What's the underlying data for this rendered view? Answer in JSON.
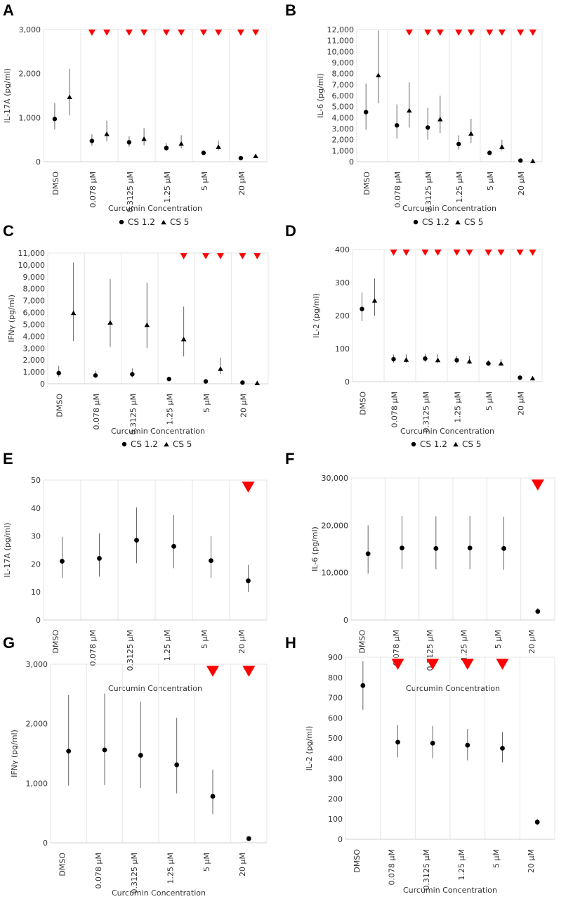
{
  "colors": {
    "marker": "#000000",
    "flag": "#ff0000",
    "grid": "#e6e6e6",
    "axis": "#d0d0d0"
  },
  "chart_data": [
    {
      "panel": "A",
      "type": "scatter",
      "ylabel": "IL-17A (pg/ml)",
      "xlabel": "Curcumin Concentration",
      "ylim": [
        0,
        3000
      ],
      "yticks": [
        0,
        1000,
        2000,
        3000
      ],
      "ytick_labels": [
        "0",
        "1,000",
        "2,000",
        "3,000"
      ],
      "categories": [
        "DMSO",
        "0.078 µM",
        "0.3125 µM",
        "1.25 µM",
        "5 µM",
        "20 µM"
      ],
      "series": [
        {
          "name": "CS 1.2",
          "marker": "circle",
          "values": [
            970,
            470,
            440,
            310,
            200,
            80
          ],
          "low": [
            730,
            360,
            340,
            240,
            160,
            60
          ],
          "high": [
            1330,
            620,
            580,
            420,
            250,
            100
          ],
          "flags": [
            false,
            true,
            true,
            true,
            true,
            true
          ]
        },
        {
          "name": "CS 5",
          "marker": "triangle",
          "values": [
            1480,
            640,
            530,
            420,
            350,
            140
          ],
          "low": [
            1050,
            460,
            370,
            300,
            250,
            110
          ],
          "high": [
            2110,
            930,
            760,
            600,
            480,
            170
          ],
          "flags": [
            false,
            true,
            true,
            true,
            true,
            true
          ]
        }
      ],
      "legend": [
        "CS 1.2",
        "CS 5"
      ]
    },
    {
      "panel": "B",
      "type": "scatter",
      "ylabel": "IL-6 (pg/ml)",
      "xlabel": "Curcumin Concentration",
      "ylim": [
        0,
        12000
      ],
      "yticks": [
        0,
        1000,
        2000,
        3000,
        4000,
        5000,
        6000,
        7000,
        8000,
        9000,
        10000,
        11000,
        12000
      ],
      "ytick_labels": [
        "0",
        "1,000",
        "2,000",
        "3,000",
        "4,000",
        "5,000",
        "6,000",
        "7,000",
        "8,000",
        "9,000",
        "10,000",
        "11,000",
        "12,000"
      ],
      "categories": [
        "DMSO",
        "0.078 µM",
        "0.3125 µM",
        "1.25 µM",
        "5 µM",
        "20 µM"
      ],
      "series": [
        {
          "name": "CS 1.2",
          "marker": "circle",
          "values": [
            4500,
            3300,
            3100,
            1600,
            800,
            100
          ],
          "low": [
            2900,
            2100,
            2000,
            1100,
            600,
            80
          ],
          "high": [
            7100,
            5200,
            4900,
            2400,
            1050,
            120
          ],
          "flags": [
            false,
            false,
            true,
            true,
            true,
            true
          ]
        },
        {
          "name": "CS 5",
          "marker": "triangle",
          "values": [
            7900,
            4700,
            3900,
            2600,
            1400,
            100
          ],
          "low": [
            5300,
            3100,
            2600,
            1700,
            1000,
            80
          ],
          "high": [
            11900,
            7200,
            6000,
            3900,
            2000,
            120
          ],
          "flags": [
            false,
            true,
            true,
            true,
            true,
            true
          ]
        }
      ],
      "legend": [
        "CS 1.2",
        "CS 5"
      ]
    },
    {
      "panel": "C",
      "type": "scatter",
      "ylabel": "IFNγ (pg/ml)",
      "xlabel": "Curcumin Concentration",
      "ylim": [
        0,
        11000
      ],
      "yticks": [
        0,
        1000,
        2000,
        3000,
        4000,
        5000,
        6000,
        7000,
        8000,
        9000,
        10000,
        11000
      ],
      "ytick_labels": [
        "0",
        "1,000",
        "2,000",
        "3,000",
        "4,000",
        "5,000",
        "6,000",
        "7,000",
        "8,000",
        "9,000",
        "10,000",
        "11,000"
      ],
      "categories": [
        "DMSO",
        "0.078 µM",
        "0.3125 µM",
        "1.25 µM",
        "5 µM",
        "20 µM"
      ],
      "series": [
        {
          "name": "CS 1.2",
          "marker": "circle",
          "values": [
            900,
            700,
            800,
            400,
            200,
            100
          ],
          "low": [
            600,
            500,
            550,
            300,
            150,
            80
          ],
          "high": [
            1500,
            1100,
            1300,
            550,
            260,
            130
          ],
          "flags": [
            false,
            false,
            false,
            false,
            true,
            true
          ]
        },
        {
          "name": "CS 5",
          "marker": "triangle",
          "values": [
            6000,
            5200,
            5000,
            3800,
            1300,
            100
          ],
          "low": [
            3600,
            3100,
            3000,
            2300,
            800,
            80
          ],
          "high": [
            10200,
            8800,
            8500,
            6500,
            2200,
            130
          ],
          "flags": [
            false,
            false,
            false,
            true,
            true,
            true
          ]
        }
      ],
      "legend": [
        "CS 1.2",
        "CS 5"
      ]
    },
    {
      "panel": "D",
      "type": "scatter",
      "ylabel": "IL-2 (pg/ml)",
      "xlabel": "Curcumin Concentration",
      "ylim": [
        0,
        400
      ],
      "yticks": [
        0,
        100,
        200,
        300,
        400
      ],
      "ytick_labels": [
        "0",
        "100",
        "200",
        "300",
        "400"
      ],
      "categories": [
        "DMSO",
        "0.078 µM",
        "0.3125 µM",
        "1.25 µM",
        "5 µM",
        "20 µM"
      ],
      "series": [
        {
          "name": "CS 1.2",
          "marker": "circle",
          "values": [
            220,
            68,
            70,
            65,
            55,
            12
          ],
          "low": [
            183,
            58,
            60,
            56,
            48,
            10
          ],
          "high": [
            270,
            82,
            84,
            78,
            65,
            15
          ],
          "flags": [
            false,
            true,
            true,
            true,
            true,
            true
          ]
        },
        {
          "name": "CS 5",
          "marker": "triangle",
          "values": [
            247,
            68,
            67,
            63,
            57,
            12
          ],
          "low": [
            200,
            57,
            56,
            53,
            48,
            10
          ],
          "high": [
            312,
            83,
            83,
            78,
            68,
            15
          ],
          "flags": [
            false,
            true,
            true,
            true,
            true,
            true
          ]
        }
      ],
      "legend": [
        "CS 1.2",
        "CS 5"
      ]
    },
    {
      "panel": "E",
      "type": "scatter",
      "ylabel": "IL-17A (pg/ml)",
      "xlabel": "Curcumin Concentration",
      "ylim": [
        0,
        50
      ],
      "yticks": [
        0,
        10,
        20,
        30,
        40,
        50
      ],
      "ytick_labels": [
        "0",
        "10",
        "20",
        "30",
        "40",
        "50"
      ],
      "categories": [
        "DMSO",
        "0.078 µM",
        "0.3125 µM",
        "1.25 µM",
        "5 µM",
        "20 µM"
      ],
      "series": [
        {
          "name": "",
          "marker": "circle",
          "values": [
            21,
            22,
            28.5,
            26.3,
            21.2,
            14
          ],
          "low": [
            15,
            15.5,
            20.3,
            18.5,
            15,
            10
          ],
          "high": [
            29.7,
            31,
            40.2,
            37.4,
            29.9,
            19.7
          ],
          "flags": [
            false,
            false,
            false,
            false,
            false,
            true
          ]
        }
      ],
      "legend": []
    },
    {
      "panel": "F",
      "type": "scatter",
      "ylabel": "IL-6 (pg/ml)",
      "xlabel": "Curcumin Concentration",
      "ylim": [
        0,
        30000
      ],
      "yticks": [
        0,
        10000,
        20000,
        30000
      ],
      "ytick_labels": [
        "0",
        "10,000",
        "20,000",
        "30,000"
      ],
      "categories": [
        "DMSO",
        "0.078 µM",
        "0.3125 µM",
        "1.25 µM",
        "5 µM",
        "20 µM"
      ],
      "series": [
        {
          "name": "",
          "marker": "circle",
          "values": [
            14000,
            15200,
            15100,
            15200,
            15100,
            1800
          ],
          "low": [
            9800,
            10800,
            10700,
            10700,
            10600,
            1400
          ],
          "high": [
            20000,
            22000,
            21900,
            22000,
            21800,
            2500
          ],
          "flags": [
            false,
            false,
            false,
            false,
            false,
            true
          ]
        }
      ],
      "legend": []
    },
    {
      "panel": "G",
      "type": "scatter",
      "ylabel": "IFNγ (pg/ml)",
      "xlabel": "Curcumin Concentration",
      "ylim": [
        0,
        3000
      ],
      "yticks": [
        0,
        1000,
        2000,
        3000
      ],
      "ytick_labels": [
        "0",
        "1,000",
        "2,000",
        "3,000"
      ],
      "categories": [
        "DMSO",
        "0.078 µM",
        "0.3125 µM",
        "1.25 µM",
        "5 µM",
        "20 µM"
      ],
      "series": [
        {
          "name": "",
          "marker": "circle",
          "values": [
            1540,
            1560,
            1470,
            1310,
            780,
            70
          ],
          "low": [
            960,
            970,
            920,
            830,
            480,
            50
          ],
          "high": [
            2480,
            2510,
            2370,
            2100,
            1230,
            90
          ],
          "flags": [
            false,
            false,
            false,
            false,
            true,
            true
          ]
        }
      ],
      "legend": []
    },
    {
      "panel": "H",
      "type": "scatter",
      "ylabel": "IL-2 (pg/ml)",
      "xlabel": "Curcumin Concentration",
      "ylim": [
        0,
        900
      ],
      "yticks": [
        0,
        100,
        200,
        300,
        400,
        500,
        600,
        700,
        800,
        900
      ],
      "ytick_labels": [
        "0",
        "100",
        "200",
        "300",
        "400",
        "500",
        "600",
        "700",
        "800",
        "900"
      ],
      "categories": [
        "DMSO",
        "0.078 µM",
        "0.3125 µM",
        "1.25 µM",
        "5 µM",
        "20 µM"
      ],
      "series": [
        {
          "name": "",
          "marker": "circle",
          "values": [
            760,
            480,
            475,
            465,
            450,
            85
          ],
          "low": [
            640,
            405,
            400,
            390,
            380,
            70
          ],
          "high": [
            880,
            565,
            560,
            545,
            530,
            100
          ],
          "flags": [
            false,
            true,
            true,
            true,
            true,
            false
          ]
        }
      ],
      "legend": []
    }
  ]
}
